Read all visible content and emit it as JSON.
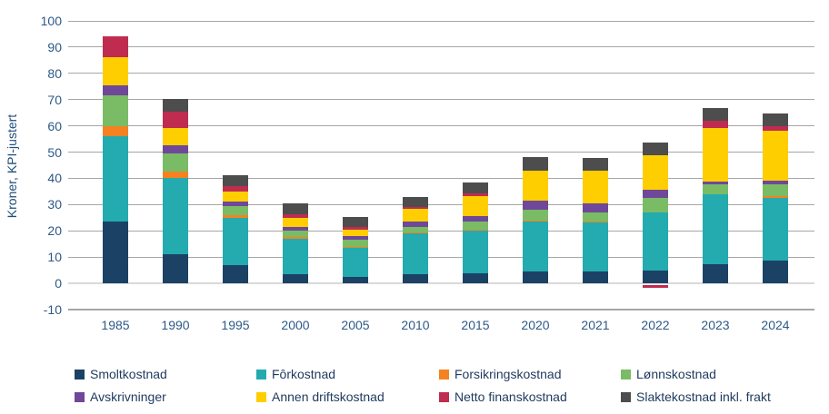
{
  "chart_data": {
    "type": "bar",
    "variant": "stacked-vertical",
    "title": "",
    "xlabel": "",
    "ylabel": "Kroner, KPI-justert",
    "ylim": [
      -10,
      100
    ],
    "yticks": [
      100,
      90,
      80,
      70,
      60,
      50,
      40,
      30,
      20,
      10,
      0,
      -10
    ],
    "grid": "horizontal",
    "legend_position": "bottom, 4 columns x 2 rows",
    "categories": [
      "1985",
      "1990",
      "1995",
      "2000",
      "2005",
      "2010",
      "2015",
      "2020",
      "2021",
      "2022",
      "2023",
      "2024"
    ],
    "series": [
      {
        "name": "Smoltkostnad",
        "color": "#1b4265",
        "values": [
          23.5,
          11.0,
          7.0,
          3.5,
          2.5,
          3.5,
          3.8,
          4.5,
          4.6,
          5.0,
          7.2,
          8.5
        ]
      },
      {
        "name": "Fôrkostnad",
        "color": "#23abaf",
        "values": [
          32.5,
          29.0,
          18.0,
          13.3,
          10.9,
          15.4,
          16.2,
          19.0,
          18.5,
          22.0,
          26.8,
          23.9
        ]
      },
      {
        "name": "Forsikringskostnad",
        "color": "#f58220",
        "values": [
          4.0,
          2.7,
          1.0,
          1.0,
          0.5,
          0.5,
          0.5,
          0.5,
          0.4,
          0.0,
          0.0,
          0.8
        ]
      },
      {
        "name": "Lønnskostnad",
        "color": "#7abb66",
        "values": [
          11.5,
          6.8,
          3.5,
          2.2,
          2.7,
          2.2,
          3.0,
          4.0,
          3.6,
          5.4,
          3.6,
          4.6
        ]
      },
      {
        "name": "Avskrivninger",
        "color": "#6f4899",
        "values": [
          4.0,
          3.0,
          1.5,
          1.6,
          1.4,
          1.8,
          2.2,
          3.5,
          3.5,
          3.4,
          1.1,
          1.2
        ]
      },
      {
        "name": "Annen driftskostnad",
        "color": "#ffce00",
        "values": [
          10.5,
          6.5,
          4.0,
          3.2,
          2.5,
          5.1,
          7.6,
          11.5,
          12.2,
          13.1,
          20.6,
          19.1
        ]
      },
      {
        "name": "Netto finanskostnad",
        "color": "#bf2c4f",
        "values": [
          8.0,
          6.5,
          2.0,
          1.4,
          1.1,
          0.6,
          0.8,
          0.0,
          0.0,
          -1.0,
          2.8,
          1.7
        ]
      },
      {
        "name": "Slaktekostnad inkl. frakt",
        "color": "#4d4d4d",
        "values": [
          0.0,
          4.8,
          4.3,
          4.4,
          3.8,
          3.8,
          4.2,
          5.0,
          4.8,
          4.8,
          4.6,
          4.9
        ]
      }
    ],
    "stack_totals_approx": [
      94.0,
      70.3,
      41.3,
      30.6,
      25.4,
      32.9,
      38.3,
      48.0,
      47.6,
      53.7,
      66.7,
      64.7
    ],
    "colors": {
      "gridline": "#a6a6a6",
      "zero_axis": "#d9d9d9",
      "axis_text": "#2d5986",
      "legend_text": "#1e3a5f"
    }
  }
}
